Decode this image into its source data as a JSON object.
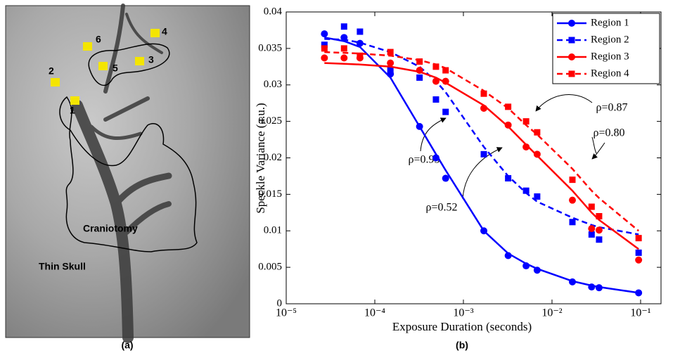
{
  "image_panel": {
    "caption": "(a)",
    "region_labels": [
      "1",
      "2",
      "3",
      "4",
      "5",
      "6"
    ],
    "annotations": [
      "Craniotomy",
      "Thin Skull"
    ]
  },
  "chart_data": {
    "type": "scatter",
    "caption": "(b)",
    "x_label": "Exposure Duration (seconds)",
    "y_label": "Speckle Variance (a.u.)",
    "xscale": "log",
    "xlim": [
      1e-05,
      0.17
    ],
    "xticks": [
      {
        "value": 1e-05,
        "label": "10⁻⁵"
      },
      {
        "value": 0.0001,
        "label": "10⁻⁴"
      },
      {
        "value": 0.001,
        "label": "10⁻³"
      },
      {
        "value": 0.01,
        "label": "10⁻²"
      },
      {
        "value": 0.1,
        "label": "10⁻¹"
      }
    ],
    "ylim": [
      0,
      0.04
    ],
    "yticks": [
      0,
      0.005,
      0.01,
      0.015,
      0.02,
      0.025,
      0.03,
      0.035,
      0.04
    ],
    "legend": "upper right",
    "x": [
      2.7e-05,
      4.5e-05,
      6.8e-05,
      0.00015,
      0.00032,
      0.00049,
      0.00063,
      0.0017,
      0.0032,
      0.0051,
      0.0068,
      0.017,
      0.028,
      0.034,
      0.095
    ],
    "series": [
      {
        "name": "Region 1",
        "color": "#0000ff",
        "dash": false,
        "marker": "circle",
        "values": [
          0.037,
          0.0365,
          0.0357,
          0.0315,
          0.0243,
          0.02,
          0.0172,
          0.01,
          0.0066,
          0.0052,
          0.0046,
          0.003,
          0.0023,
          0.0022,
          0.0015
        ],
        "fit": [
          0.0365,
          0.036,
          0.0352,
          0.031,
          0.0243,
          0.0205,
          0.0183,
          0.01,
          0.0069,
          0.0055,
          0.0048,
          0.0031,
          0.0025,
          0.0023,
          0.0015
        ]
      },
      {
        "name": "Region 2",
        "color": "#0000ff",
        "dash": true,
        "marker": "square",
        "values": [
          0.0355,
          0.038,
          0.0373,
          0.032,
          0.031,
          0.028,
          0.0263,
          0.0205,
          0.0172,
          0.0155,
          0.0147,
          0.0112,
          0.0095,
          0.0088,
          0.007
        ],
        "fit": [
          0.0363,
          0.0362,
          0.0358,
          0.0345,
          0.0325,
          0.0305,
          0.029,
          0.0215,
          0.0175,
          0.0152,
          0.014,
          0.0118,
          0.0108,
          0.0105,
          0.0095
        ]
      },
      {
        "name": "Region 3",
        "color": "#ff0000",
        "dash": false,
        "marker": "circle",
        "values": [
          0.0337,
          0.0337,
          0.0337,
          0.033,
          0.032,
          0.0305,
          0.0305,
          0.0268,
          0.0245,
          0.0215,
          0.0205,
          0.0142,
          0.0103,
          0.0101,
          0.006
        ],
        "fit": [
          0.033,
          0.0329,
          0.0328,
          0.0325,
          0.0318,
          0.031,
          0.0303,
          0.0272,
          0.0243,
          0.0218,
          0.0203,
          0.0155,
          0.0125,
          0.0115,
          0.0075
        ]
      },
      {
        "name": "Region 4",
        "color": "#ff0000",
        "dash": true,
        "marker": "square",
        "values": [
          0.035,
          0.035,
          0.034,
          0.0345,
          0.0332,
          0.0325,
          0.032,
          0.0288,
          0.027,
          0.025,
          0.0235,
          0.017,
          0.0133,
          0.012,
          0.009
        ],
        "fit": [
          0.0345,
          0.0344,
          0.0343,
          0.034,
          0.0334,
          0.0328,
          0.0323,
          0.0292,
          0.0268,
          0.0245,
          0.0232,
          0.0185,
          0.0155,
          0.0145,
          0.01
        ]
      }
    ],
    "annotations": [
      "ρ=0.95",
      "ρ=0.52",
      "ρ=0.87",
      "ρ=0.80"
    ]
  }
}
